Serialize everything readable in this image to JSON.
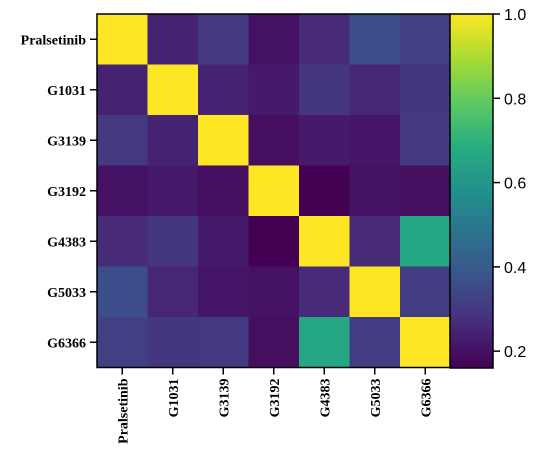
{
  "chart_data": {
    "type": "heatmap",
    "title": "",
    "xlabel": "",
    "ylabel": "",
    "labels": [
      "Pralsetinib",
      "G1031",
      "G3139",
      "G3192",
      "G4383",
      "G5033",
      "G6366"
    ],
    "values": [
      [
        1.0,
        0.24,
        0.3,
        0.2,
        0.26,
        0.36,
        0.32
      ],
      [
        0.24,
        1.0,
        0.24,
        0.22,
        0.29,
        0.25,
        0.29
      ],
      [
        0.3,
        0.24,
        1.0,
        0.19,
        0.22,
        0.21,
        0.3
      ],
      [
        0.2,
        0.22,
        0.19,
        1.0,
        0.16,
        0.2,
        0.19
      ],
      [
        0.26,
        0.29,
        0.22,
        0.16,
        1.0,
        0.26,
        0.66
      ],
      [
        0.36,
        0.25,
        0.21,
        0.2,
        0.26,
        1.0,
        0.31
      ],
      [
        0.32,
        0.29,
        0.3,
        0.19,
        0.66,
        0.31,
        1.0
      ]
    ],
    "colorbar": {
      "min": 0.16,
      "max": 1.0,
      "ticks": [
        0.2,
        0.4,
        0.6,
        0.8,
        1.0
      ],
      "tick_labels": [
        "0.2",
        "0.4",
        "0.6",
        "0.8",
        "1.0"
      ],
      "colormap": "viridis"
    }
  }
}
